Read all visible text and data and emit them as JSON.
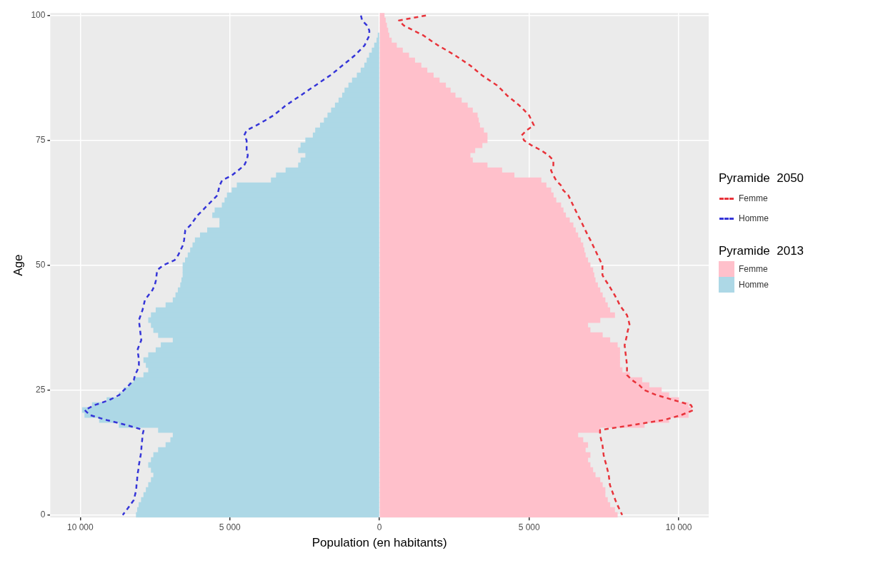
{
  "chart_data": {
    "type": "bar",
    "orientation": "horizontal",
    "stacked": true,
    "xlabel": "Population (en habitants)",
    "ylabel": "Age",
    "legend_title": [
      "Pyramide  2050",
      "Pyramide  2013"
    ],
    "legend": "right",
    "grid": true,
    "marker": "none",
    "line_style": "dashed",
    "categories": [
      "100",
      null,
      null,
      null,
      null,
      null,
      null,
      null,
      null,
      null,
      null,
      null,
      null,
      null,
      null,
      null,
      null,
      null,
      null,
      null,
      null,
      null,
      null,
      null,
      null,
      "75",
      null,
      null,
      null,
      null,
      null,
      null,
      null,
      null,
      null,
      null,
      null,
      null,
      null,
      null,
      null,
      null,
      null,
      null,
      null,
      null,
      null,
      null,
      null,
      null,
      "50",
      null,
      null,
      null,
      null,
      null,
      null,
      null,
      null,
      null,
      null,
      null,
      null,
      null,
      null,
      null,
      null,
      null,
      null,
      null,
      null,
      null,
      null,
      null,
      null,
      "25",
      null,
      null,
      null,
      null,
      null,
      null,
      null,
      null,
      null,
      null,
      null,
      null,
      null,
      null,
      null,
      null,
      null,
      null,
      null,
      null,
      null,
      null,
      null,
      null,
      "0"
    ],
    "xlim": [
      -11000,
      11000
    ],
    "xticks": [
      {
        "value": -10000,
        "label": "10 000"
      },
      {
        "value": -5000,
        "label": "5 000"
      },
      0,
      {
        "value": 5000,
        "label": "5 000"
      },
      {
        "value": 10000,
        "label": "10 000"
      }
    ],
    "series": [
      {
        "name": "Femme",
        "type": "line",
        "color": "#e8333a",
        "values": [
          1550,
          650,
          810,
          1140,
          1470,
          1710,
          1960,
          2250,
          2530,
          2780,
          3030,
          3230,
          3430,
          3680,
          3930,
          4100,
          4260,
          4470,
          4670,
          4840,
          5000,
          5080,
          5160,
          4910,
          4750,
          4830,
          5080,
          5400,
          5650,
          5810,
          5810,
          5730,
          5810,
          5900,
          6060,
          6140,
          6310,
          6390,
          6470,
          6550,
          6630,
          6720,
          6800,
          6880,
          6960,
          7050,
          7130,
          7210,
          7290,
          7370,
          7450,
          7450,
          7450,
          7550,
          7660,
          7760,
          7860,
          7950,
          8030,
          8150,
          8270,
          8320,
          8360,
          8300,
          8270,
          8230,
          8190,
          8210,
          8230,
          8250,
          8270,
          8270,
          8270,
          8440,
          8680,
          8850,
          9260,
          9830,
          10410,
          10490,
          10080,
          9500,
          8440,
          7370,
          7370,
          7410,
          7450,
          7470,
          7490,
          7530,
          7580,
          7620,
          7660,
          7680,
          7700,
          7760,
          7820,
          7880,
          7950,
          8030,
          8110
        ]
      },
      {
        "name": "Homme",
        "type": "line",
        "color": "#3535d8",
        "values": [
          -620,
          -580,
          -420,
          -340,
          -340,
          -420,
          -500,
          -660,
          -830,
          -1030,
          -1240,
          -1440,
          -1650,
          -1900,
          -2140,
          -2390,
          -2630,
          -2880,
          -3130,
          -3330,
          -3540,
          -3820,
          -4110,
          -4440,
          -4520,
          -4440,
          -4440,
          -4440,
          -4400,
          -4440,
          -4520,
          -4720,
          -4930,
          -5260,
          -5340,
          -5380,
          -5420,
          -5580,
          -5750,
          -5910,
          -6080,
          -6200,
          -6320,
          -6490,
          -6510,
          -6530,
          -6570,
          -6650,
          -6730,
          -6850,
          -7230,
          -7430,
          -7450,
          -7470,
          -7510,
          -7590,
          -7720,
          -7840,
          -7880,
          -7920,
          -7980,
          -8040,
          -8020,
          -8000,
          -7980,
          -7960,
          -8030,
          -8090,
          -8060,
          -8040,
          -8040,
          -8090,
          -8170,
          -8210,
          -8370,
          -8540,
          -8700,
          -9030,
          -9520,
          -9850,
          -9680,
          -9110,
          -8450,
          -7880,
          -7920,
          -7930,
          -7950,
          -7960,
          -7980,
          -8010,
          -8040,
          -8060,
          -8090,
          -8100,
          -8120,
          -8130,
          -8170,
          -8210,
          -8330,
          -8450,
          -8580
        ]
      },
      {
        "name": "Femme",
        "color": "#ffc0cb",
        "values": [
          160,
          200,
          240,
          280,
          320,
          400,
          570,
          770,
          980,
          1180,
          1390,
          1590,
          1800,
          2000,
          2210,
          2370,
          2530,
          2740,
          2940,
          3110,
          3270,
          3310,
          3350,
          3480,
          3600,
          3600,
          3430,
          3190,
          3030,
          3110,
          3600,
          4090,
          4500,
          5400,
          5570,
          5730,
          5810,
          5900,
          6060,
          6140,
          6220,
          6350,
          6470,
          6550,
          6630,
          6720,
          6800,
          6840,
          6880,
          6960,
          7040,
          7130,
          7170,
          7210,
          7290,
          7370,
          7450,
          7540,
          7620,
          7700,
          7860,
          7370,
          6960,
          7040,
          7450,
          7700,
          7950,
          8030,
          8030,
          8030,
          8030,
          8110,
          8360,
          8770,
          9010,
          9420,
          9670,
          10000,
          10320,
          10410,
          10320,
          9670,
          8850,
          7370,
          6630,
          6800,
          6960,
          6880,
          7040,
          6960,
          7040,
          7130,
          7210,
          7370,
          7450,
          7540,
          7540,
          7620,
          7700,
          7860,
          7950
        ]
      },
      {
        "name": "Homme",
        "color": "#add8e6",
        "values": [
          null,
          null,
          null,
          null,
          -50,
          -90,
          -170,
          -250,
          -340,
          -420,
          -500,
          -620,
          -750,
          -910,
          -1030,
          -1160,
          -1240,
          -1360,
          -1480,
          -1610,
          -1730,
          -1850,
          -1980,
          -2140,
          -2220,
          -2470,
          -2630,
          -2710,
          -2470,
          -2630,
          -2710,
          -3130,
          -3450,
          -3620,
          -4760,
          -4930,
          -5090,
          -5170,
          -5260,
          -5500,
          -5580,
          -5340,
          -5340,
          -5750,
          -5990,
          -6160,
          -6240,
          -6320,
          -6400,
          -6490,
          -6570,
          -6570,
          -6570,
          -6610,
          -6650,
          -6730,
          -6810,
          -6900,
          -7140,
          -7470,
          -7630,
          -7720,
          -7630,
          -7550,
          -7390,
          -6900,
          -7300,
          -7470,
          -7720,
          -7880,
          -7800,
          -7720,
          -7880,
          -8210,
          -8370,
          -8540,
          -8700,
          -9110,
          -9600,
          -9930,
          -9850,
          -9360,
          -8700,
          -7390,
          -6900,
          -6980,
          -7140,
          -7390,
          -7550,
          -7630,
          -7720,
          -7630,
          -7550,
          -7630,
          -7720,
          -7800,
          -7880,
          -7960,
          -8040,
          -8090,
          -8130
        ]
      }
    ]
  }
}
